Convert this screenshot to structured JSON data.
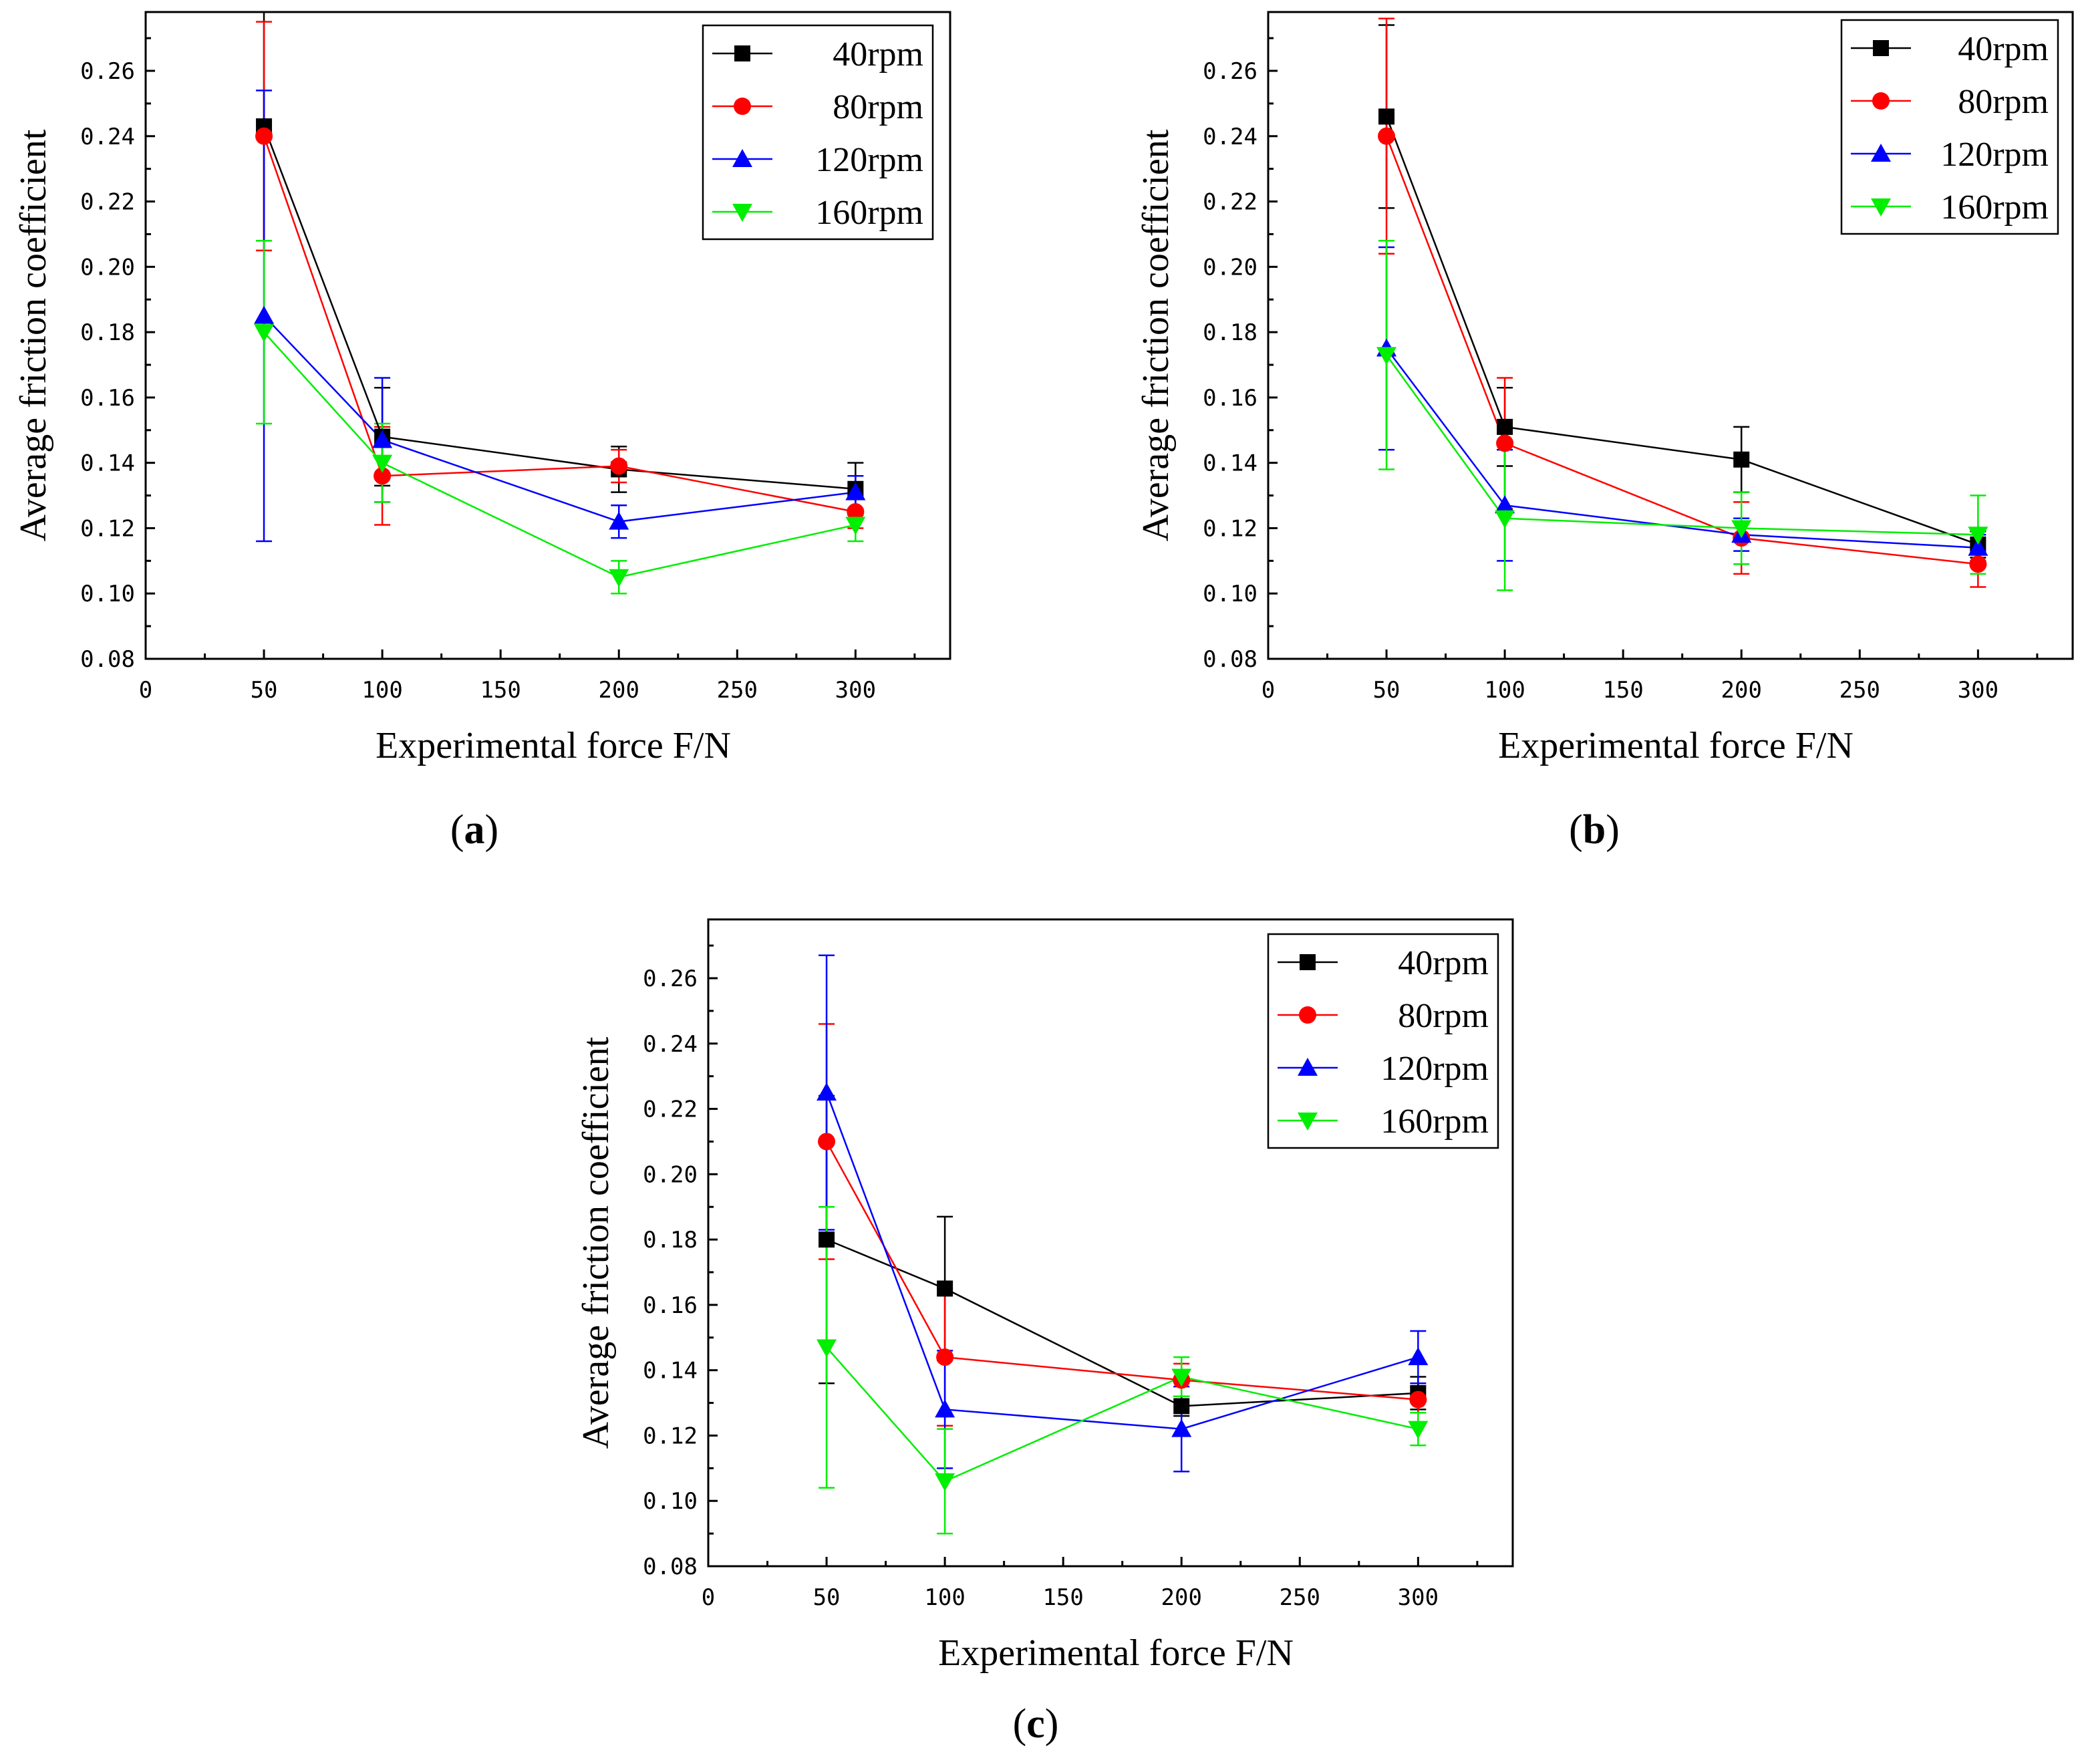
{
  "chart_data": [
    {
      "panel": "a",
      "type": "line",
      "xlabel": "Experimental force F/N",
      "ylabel": "Average friction coefficient",
      "xlim": [
        0,
        340
      ],
      "ylim": [
        0.08,
        0.278
      ],
      "xticks": [
        0,
        50,
        100,
        150,
        200,
        250,
        300
      ],
      "xtick_labels": [
        "0",
        "50",
        "100",
        "150",
        "200",
        "250",
        "300"
      ],
      "yticks": [
        0.08,
        0.1,
        0.12,
        0.14,
        0.16,
        0.18,
        0.2,
        0.22,
        0.24,
        0.26
      ],
      "ytick_labels": [
        "0.08",
        "0.10",
        "0.12",
        "0.14",
        "0.16",
        "0.18",
        "0.20",
        "0.22",
        "0.24",
        "0.26"
      ],
      "x": [
        50,
        100,
        200,
        300
      ],
      "series": [
        {
          "name": "40rpm",
          "color": "#000000",
          "marker": "square",
          "values": [
            0.243,
            0.148,
            0.138,
            0.132
          ],
          "errors": [
            0.035,
            0.015,
            0.007,
            0.008
          ]
        },
        {
          "name": "80rpm",
          "color": "#ff0000",
          "marker": "circle",
          "values": [
            0.24,
            0.136,
            0.139,
            0.125
          ],
          "errors": [
            0.035,
            0.015,
            0.005,
            0.005
          ]
        },
        {
          "name": "120rpm",
          "color": "#0000ff",
          "marker": "triangle-up",
          "values": [
            0.185,
            0.147,
            0.122,
            0.131
          ],
          "errors": [
            0.069,
            0.019,
            0.005,
            0.005
          ]
        },
        {
          "name": "160rpm",
          "color": "#00ee00",
          "marker": "triangle-down",
          "values": [
            0.18,
            0.14,
            0.105,
            0.121
          ],
          "errors": [
            0.028,
            0.012,
            0.005,
            0.005
          ]
        }
      ],
      "legend_position": "top-right"
    },
    {
      "panel": "b",
      "type": "line",
      "xlabel": "Experimental force F/N",
      "ylabel": "Average friction coefficient",
      "xlim": [
        0,
        340
      ],
      "ylim": [
        0.08,
        0.278
      ],
      "xticks": [
        0,
        50,
        100,
        150,
        200,
        250,
        300
      ],
      "xtick_labels": [
        "0",
        "50",
        "100",
        "150",
        "200",
        "250",
        "300"
      ],
      "yticks": [
        0.08,
        0.1,
        0.12,
        0.14,
        0.16,
        0.18,
        0.2,
        0.22,
        0.24,
        0.26
      ],
      "ytick_labels": [
        "0.08",
        "0.10",
        "0.12",
        "0.14",
        "0.16",
        "0.18",
        "0.20",
        "0.22",
        "0.24",
        "0.26"
      ],
      "x": [
        50,
        100,
        200,
        300
      ],
      "series": [
        {
          "name": "40rpm",
          "color": "#000000",
          "marker": "square",
          "values": [
            0.246,
            0.151,
            0.141,
            0.115
          ],
          "errors": [
            0.028,
            0.012,
            0.01,
            0.004
          ]
        },
        {
          "name": "80rpm",
          "color": "#ff0000",
          "marker": "circle",
          "values": [
            0.24,
            0.146,
            0.117,
            0.109
          ],
          "errors": [
            0.036,
            0.02,
            0.011,
            0.007
          ]
        },
        {
          "name": "120rpm",
          "color": "#0000ff",
          "marker": "triangle-up",
          "values": [
            0.175,
            0.127,
            0.118,
            0.114
          ],
          "errors": [
            0.031,
            0.017,
            0.005,
            0.004
          ]
        },
        {
          "name": "160rpm",
          "color": "#00ee00",
          "marker": "triangle-down",
          "values": [
            0.173,
            0.123,
            0.12,
            0.118
          ],
          "errors": [
            0.035,
            0.022,
            0.011,
            0.012
          ]
        }
      ],
      "legend_position": "top-right"
    },
    {
      "panel": "c",
      "type": "line",
      "xlabel": "Experimental force F/N",
      "ylabel": "Average friction coefficient",
      "xlim": [
        0,
        340
      ],
      "ylim": [
        0.08,
        0.278
      ],
      "xticks": [
        0,
        50,
        100,
        150,
        200,
        250,
        300
      ],
      "xtick_labels": [
        "0",
        "50",
        "100",
        "150",
        "200",
        "250",
        "300"
      ],
      "yticks": [
        0.08,
        0.1,
        0.12,
        0.14,
        0.16,
        0.18,
        0.2,
        0.22,
        0.24,
        0.26
      ],
      "ytick_labels": [
        "0.08",
        "0.10",
        "0.12",
        "0.14",
        "0.16",
        "0.18",
        "0.20",
        "0.22",
        "0.24",
        "0.26"
      ],
      "x": [
        50,
        100,
        200,
        300
      ],
      "series": [
        {
          "name": "40rpm",
          "color": "#000000",
          "marker": "square",
          "values": [
            0.18,
            0.165,
            0.129,
            0.133
          ],
          "errors": [
            0.044,
            0.022,
            0.003,
            0.005
          ]
        },
        {
          "name": "80rpm",
          "color": "#ff0000",
          "marker": "circle",
          "values": [
            0.21,
            0.144,
            0.137,
            0.131
          ],
          "errors": [
            0.036,
            0.021,
            0.005,
            0.004
          ]
        },
        {
          "name": "120rpm",
          "color": "#0000ff",
          "marker": "triangle-up",
          "values": [
            0.225,
            0.128,
            0.122,
            0.144
          ],
          "errors": [
            0.042,
            0.018,
            0.013,
            0.008
          ]
        },
        {
          "name": "160rpm",
          "color": "#00ee00",
          "marker": "triangle-down",
          "values": [
            0.147,
            0.106,
            0.138,
            0.122
          ],
          "errors": [
            0.043,
            0.016,
            0.006,
            0.005
          ]
        }
      ],
      "legend_position": "top-right"
    }
  ],
  "panel_labels": {
    "a": {
      "open": "(",
      "letter": "a",
      "close": ")"
    },
    "b": {
      "open": "(",
      "letter": "b",
      "close": ")"
    },
    "c": {
      "open": "(",
      "letter": "c",
      "close": ")"
    }
  }
}
